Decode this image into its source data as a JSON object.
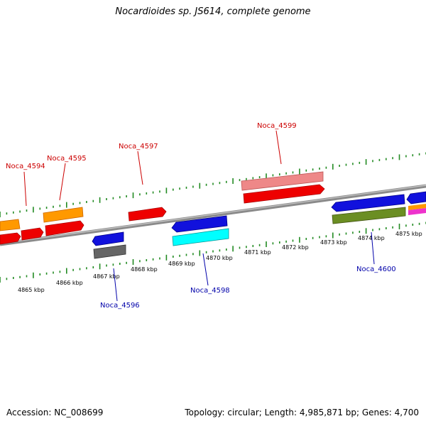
{
  "title": "Nocardioides sp. JS614, complete genome",
  "footer": {
    "accession": "Accession: NC_008699",
    "summary": "Topology: circular; Length: 4,985,871 bp; Genes: 4,700"
  },
  "colors": {
    "backbone": "#888888",
    "tick": "#228b22",
    "label_forward": "#cc0000",
    "label_reverse": "#0000aa",
    "red": "#ee0000",
    "pink": "#ee8888",
    "orange": "#ff9900",
    "blue": "#1111dd",
    "cyan": "#00ffff",
    "gray": "#666666",
    "olive": "#6b8e23",
    "magenta": "#ee33cc"
  },
  "kbp_labels": [
    "4865 kbp",
    "4866 kbp",
    "4867 kbp",
    "4868 kbp",
    "4869 kbp",
    "4870 kbp",
    "4871 kbp",
    "4872 kbp",
    "4873 kbp",
    "4874 kbp",
    "4875 kbp"
  ],
  "gene_labels": {
    "forward": [
      "Noca_4594",
      "Noca_4595",
      "Noca_4597",
      "Noca_4599"
    ],
    "reverse": [
      "Noca_4596",
      "Noca_4598",
      "Noca_4600"
    ]
  }
}
